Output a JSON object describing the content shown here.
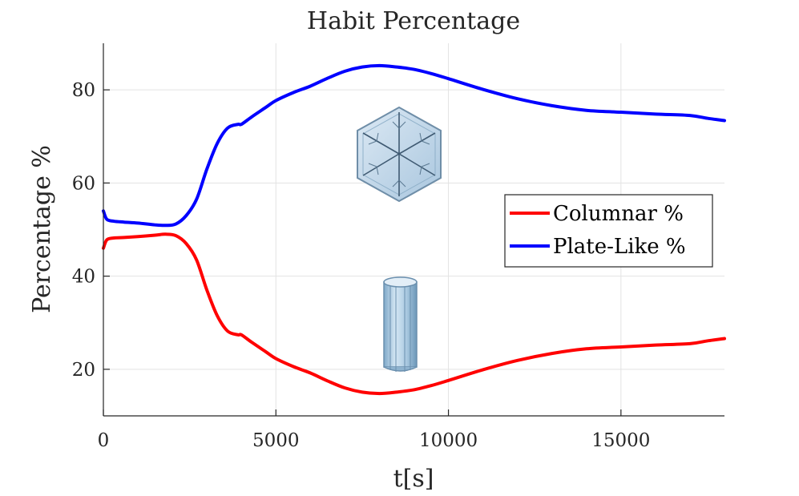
{
  "chart_data": {
    "type": "line",
    "title": "Habit Percentage",
    "xlabel": "t[s]",
    "ylabel": "Percentage %",
    "xlim": [
      0,
      18000
    ],
    "ylim": [
      10,
      90
    ],
    "xticks": [
      0,
      5000,
      10000,
      15000
    ],
    "xtick_labels": [
      "0",
      "5000",
      "10000",
      "15000"
    ],
    "yticks": [
      20,
      40,
      60,
      80
    ],
    "ytick_labels": [
      "20",
      "40",
      "60",
      "80"
    ],
    "grid": true,
    "legend_position": "right",
    "annotations": [
      "snowflake-plate-crystal-illustration",
      "hexagonal-column-crystal-illustration"
    ],
    "series": [
      {
        "name": "Columnar %",
        "color": "#ff0000",
        "x": [
          0,
          100,
          300,
          600,
          1000,
          1500,
          1800,
          2100,
          2400,
          2700,
          3000,
          3300,
          3600,
          3900,
          4000,
          4300,
          4700,
          5000,
          5500,
          6000,
          6500,
          7000,
          7500,
          8000,
          8500,
          9000,
          9500,
          10000,
          11000,
          12000,
          13000,
          14000,
          15000,
          16000,
          17000,
          17500,
          18000
        ],
        "values": [
          46.0,
          47.8,
          48.2,
          48.3,
          48.5,
          48.8,
          49.0,
          48.7,
          47.0,
          43.5,
          37.0,
          31.5,
          28.2,
          27.4,
          27.4,
          25.8,
          23.8,
          22.3,
          20.6,
          19.2,
          17.5,
          16.0,
          15.1,
          14.8,
          15.1,
          15.6,
          16.5,
          17.6,
          19.9,
          21.9,
          23.4,
          24.4,
          24.8,
          25.2,
          25.5,
          26.1,
          26.6
        ]
      },
      {
        "name": "Plate-Like %",
        "color": "#0000ff",
        "x": [
          0,
          100,
          300,
          600,
          1000,
          1500,
          1800,
          2100,
          2400,
          2700,
          3000,
          3300,
          3600,
          3900,
          4000,
          4300,
          4700,
          5000,
          5500,
          6000,
          6500,
          7000,
          7500,
          8000,
          8500,
          9000,
          9500,
          10000,
          11000,
          12000,
          13000,
          14000,
          15000,
          16000,
          17000,
          17500,
          18000
        ],
        "values": [
          54.0,
          52.2,
          51.8,
          51.6,
          51.4,
          51.0,
          50.9,
          51.2,
          53.0,
          56.5,
          63.0,
          68.5,
          71.8,
          72.6,
          72.6,
          74.2,
          76.2,
          77.7,
          79.4,
          80.8,
          82.5,
          84.0,
          84.9,
          85.2,
          84.9,
          84.4,
          83.5,
          82.4,
          80.1,
          78.1,
          76.6,
          75.6,
          75.2,
          74.8,
          74.5,
          73.9,
          73.4
        ]
      }
    ]
  }
}
